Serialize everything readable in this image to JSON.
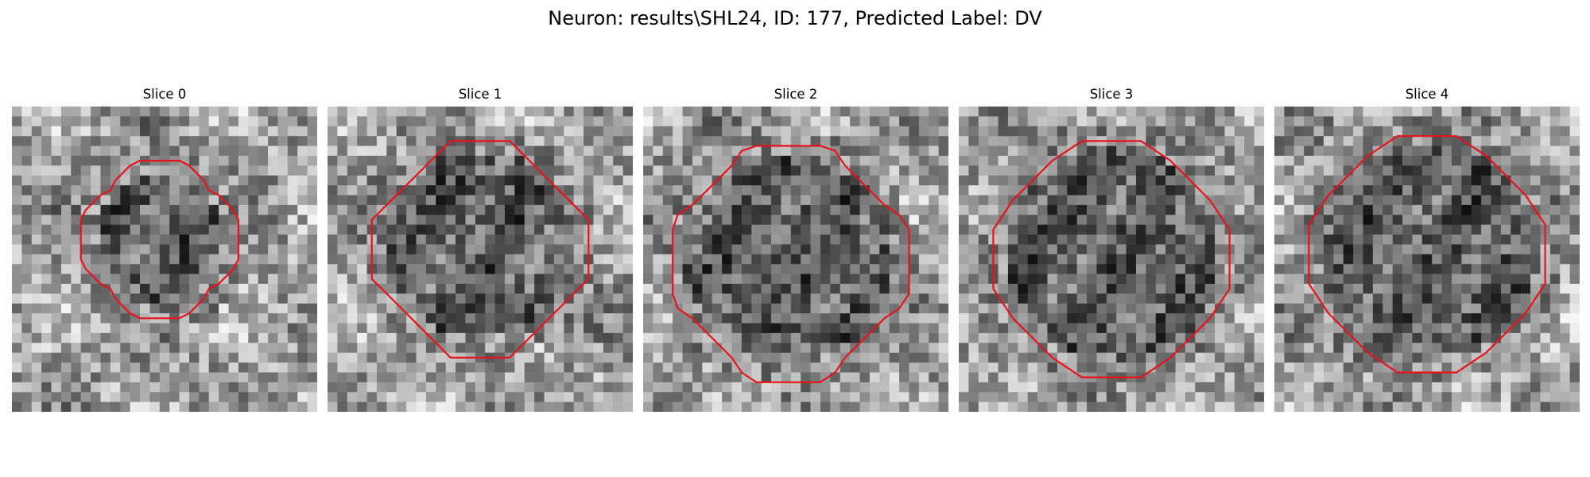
{
  "figure": {
    "title": "Neuron: results\\SHL24, ID: 177, Predicted Label: DV"
  },
  "panels": [
    {
      "title": "Slice 0"
    },
    {
      "title": "Slice 1"
    },
    {
      "title": "Slice 2"
    },
    {
      "title": "Slice 3"
    },
    {
      "title": "Slice 4"
    }
  ],
  "colors": {
    "background": "#ffffff",
    "contour": "#e8121b",
    "pixel_dark": "#101010",
    "pixel_light": "#f4f4f4"
  }
}
